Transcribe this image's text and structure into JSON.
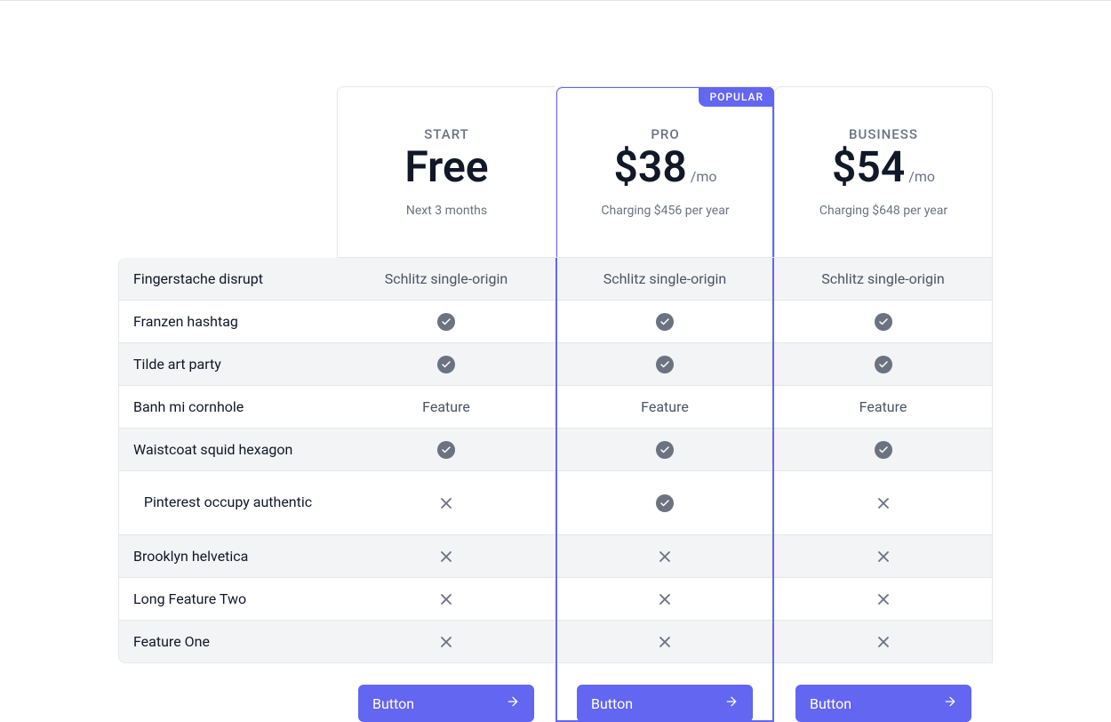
{
  "theme": {
    "accent": "#6366f1",
    "text_primary": "#111827",
    "text_secondary": "#6b7280",
    "row_alt_bg": "#f3f4f6",
    "border": "#e5e7eb",
    "icon_bg": "#6b7280",
    "icon_x": "#6b7280",
    "button_bg": "#6366f1",
    "button_text": "#ffffff"
  },
  "badge": "POPULAR",
  "features": [
    "Fingerstache disrupt",
    "Franzen hashtag",
    "Tilde art party",
    "Banh mi cornhole",
    "Waistcoat squid hexagon",
    "Pinterest occupy authentic",
    "Brooklyn helvetica",
    "Long Feature Two",
    "Feature One"
  ],
  "plans": [
    {
      "tier": "START",
      "price": "Free",
      "per": "",
      "sub": "Next 3 months",
      "highlight": false,
      "button": "Button",
      "cells": [
        "Schlitz single-origin",
        "check",
        "check",
        "Feature",
        "check",
        "x",
        "x",
        "x",
        "x"
      ]
    },
    {
      "tier": "PRO",
      "price": "$38",
      "per": "/mo",
      "sub": "Charging $456 per year",
      "highlight": true,
      "button": "Button",
      "cells": [
        "Schlitz single-origin",
        "check",
        "check",
        "Feature",
        "check",
        "check",
        "x",
        "x",
        "x"
      ]
    },
    {
      "tier": "BUSINESS",
      "price": "$54",
      "per": "/mo",
      "sub": "Charging $648 per year",
      "highlight": false,
      "button": "Button",
      "cells": [
        "Schlitz single-origin",
        "check",
        "check",
        "Feature",
        "check",
        "x",
        "x",
        "x",
        "x"
      ]
    }
  ]
}
